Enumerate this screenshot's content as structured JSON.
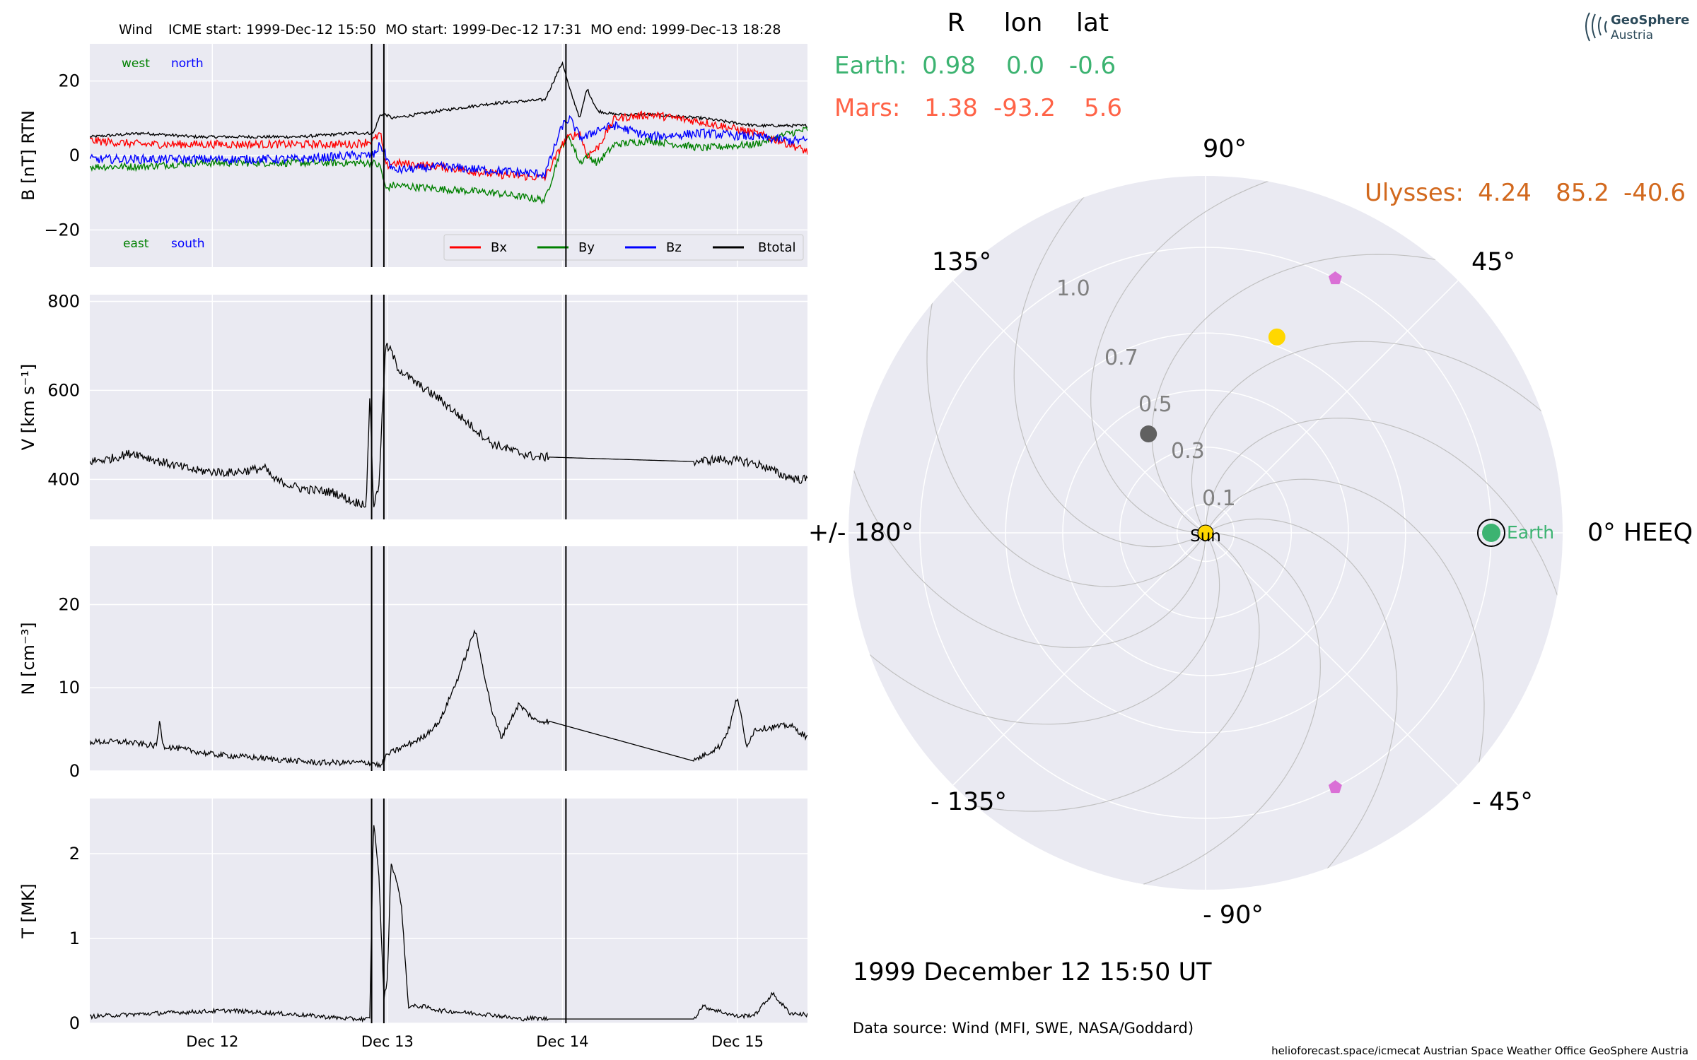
{
  "header": {
    "spacecraft": "Wind",
    "icme_start": "ICME start: 1999-Dec-12 15:50",
    "mo_start": "MO start: 1999-Dec-12 17:31",
    "mo_end": "MO end: 1999-Dec-13 18:28"
  },
  "colors": {
    "bx": "#ff0000",
    "by": "#008000",
    "bz": "#0000ff",
    "btotal": "#000000",
    "panel_bg": "#eaeaf2",
    "grid": "#ffffff",
    "earth": "#3cb371",
    "mars": "#ff6347",
    "ulysses": "#d2691e",
    "sun": "#ffd700",
    "inner_planet": "#ffd700",
    "mercury": "#606060",
    "probe": "#da70d6",
    "spiral": "#c0c0c0",
    "tick_label_polar": "#808080"
  },
  "chart_data": [
    {
      "type": "line",
      "name": "magnetic-field",
      "ylabel": "B [nT] RTN",
      "ylim": [
        -30,
        30
      ],
      "yticks": [
        -20,
        0,
        20
      ],
      "ytick_labels": [
        "−20",
        "0",
        "20"
      ],
      "annotations_top": [
        "west",
        "north"
      ],
      "annotations_bottom": [
        "east",
        "south"
      ],
      "legend": [
        "Bx",
        "By",
        "Bz",
        "Btotal"
      ],
      "legend_placement": "lower-right",
      "x_knots_days": [
        0,
        0.3,
        0.6,
        0.9,
        1.2,
        1.5,
        1.62,
        1.66,
        1.69,
        1.73,
        2.0,
        2.3,
        2.6,
        2.7,
        2.74,
        2.8,
        2.84,
        2.9,
        3.0,
        3.2,
        3.5,
        3.8,
        4.0,
        4.1
      ],
      "series": [
        {
          "name": "Bx",
          "values": [
            4,
            3,
            3,
            3,
            3,
            3,
            4,
            6,
            -3,
            -2,
            -3,
            -5,
            -6,
            3,
            5,
            6,
            0,
            2,
            10,
            11,
            9,
            6,
            3,
            1
          ]
        },
        {
          "name": "By",
          "values": [
            -3,
            -3,
            -2,
            -2,
            -2,
            -2,
            -2,
            -3,
            -9,
            -8,
            -9,
            -10,
            -12,
            3,
            5,
            -2,
            0,
            -2,
            3,
            4,
            2,
            3,
            6,
            7
          ]
        },
        {
          "name": "Bz",
          "values": [
            -1,
            -1,
            -1,
            -1,
            -1,
            0,
            0,
            3,
            0,
            -4,
            -3,
            -4,
            -5,
            8,
            10,
            5,
            5,
            7,
            8,
            5,
            6,
            5,
            4,
            4
          ]
        },
        {
          "name": "Btotal",
          "values": [
            5,
            6,
            5,
            5,
            5,
            6,
            6,
            11,
            11,
            10,
            12,
            14,
            15,
            25,
            18,
            10,
            18,
            12,
            11,
            11,
            10,
            8,
            8,
            8
          ]
        }
      ]
    },
    {
      "type": "line",
      "name": "speed",
      "ylabel": "V [km s⁻¹]",
      "ylim": [
        310,
        815
      ],
      "yticks": [
        400,
        600,
        800
      ],
      "x_knots_days": [
        0,
        0.1,
        0.25,
        0.4,
        0.6,
        0.8,
        1.0,
        1.05,
        1.2,
        1.4,
        1.5,
        1.58,
        1.6,
        1.62,
        1.65,
        1.69,
        1.72,
        1.76,
        1.85,
        2.0,
        2.15,
        2.3,
        2.45,
        2.55,
        2.62,
        3.45,
        3.6,
        3.75,
        3.85,
        3.95,
        4.05,
        4.1
      ],
      "values": [
        440,
        445,
        460,
        440,
        420,
        415,
        425,
        400,
        380,
        370,
        350,
        345,
        600,
        340,
        380,
        700,
        690,
        650,
        620,
        580,
        530,
        480,
        460,
        450,
        450,
        440,
        445,
        440,
        430,
        410,
        400,
        400
      ]
    },
    {
      "type": "line",
      "name": "density",
      "ylabel": "N [cm⁻³]",
      "ylim": [
        0,
        27
      ],
      "yticks": [
        0,
        10,
        20
      ],
      "x_knots_days": [
        0,
        0.2,
        0.38,
        0.4,
        0.42,
        0.7,
        1.0,
        1.3,
        1.5,
        1.62,
        1.66,
        1.7,
        1.9,
        2.0,
        2.1,
        2.2,
        2.3,
        2.35,
        2.45,
        2.55,
        2.62,
        3.45,
        3.6,
        3.65,
        3.7,
        3.75,
        3.8,
        4.0,
        4.1
      ],
      "values": [
        3.5,
        3.5,
        3,
        6,
        3,
        2,
        1.5,
        1,
        1,
        1,
        0.5,
        2,
        4,
        6,
        11,
        17,
        7,
        4,
        8,
        6,
        6,
        1.2,
        3,
        5,
        9,
        3,
        5,
        5.5,
        4
      ]
    },
    {
      "type": "line",
      "name": "temperature",
      "ylabel": "T [MK]",
      "ylim": [
        0,
        2.65
      ],
      "yticks": [
        0,
        1,
        2
      ],
      "x_knots_days": [
        0,
        0.4,
        0.8,
        1.2,
        1.5,
        1.6,
        1.62,
        1.65,
        1.68,
        1.7,
        1.72,
        1.75,
        1.78,
        1.82,
        1.9,
        2.0,
        2.3,
        2.45,
        2.55,
        2.62,
        3.45,
        3.5,
        3.7,
        3.8,
        3.9,
        4.0,
        4.1
      ],
      "values": [
        0.08,
        0.12,
        0.15,
        0.1,
        0.05,
        0.05,
        2.4,
        1.8,
        0.3,
        0.5,
        1.9,
        1.7,
        1.4,
        0.2,
        0.2,
        0.15,
        0.1,
        0.05,
        0.06,
        0.05,
        0.05,
        0.2,
        0.08,
        0.1,
        0.35,
        0.12,
        0.1
      ]
    },
    {
      "type": "polar",
      "name": "heliosphere-position",
      "angle_labels": [
        "90°",
        "45°",
        "0° HEEQ",
        "- 45°",
        "- 90°",
        "- 135°",
        "+/- 180°",
        "135°"
      ],
      "angles_deg": [
        90,
        45,
        0,
        -45,
        -90,
        -135,
        180,
        135
      ],
      "radial_labels": [
        "0.1",
        "0.3",
        "0.5",
        "0.7",
        "1.0"
      ],
      "radial_values": [
        0.1,
        0.3,
        0.5,
        0.7,
        1.0
      ],
      "rmax": 1.25,
      "table_header": [
        "R",
        "lon",
        "lat"
      ],
      "bodies": [
        {
          "name": "Earth",
          "r": 0.98,
          "lon": 0.0,
          "lat": -0.6
        },
        {
          "name": "Mars",
          "r": 1.38,
          "lon": -93.2,
          "lat": 5.6
        },
        {
          "name": "Ulysses",
          "r": 4.24,
          "lon": 85.2,
          "lat": -40.6
        }
      ],
      "markers": [
        {
          "name": "Sun",
          "r": 0.0,
          "lon": 0
        },
        {
          "name": "Earth",
          "r": 1.0,
          "lon": 0
        },
        {
          "name": "yellow-planet",
          "r": 0.73,
          "lon": 70
        },
        {
          "name": "grey-planet",
          "r": 0.4,
          "lon": 120
        },
        {
          "name": "probe-north",
          "r": 1.0,
          "lon": 63
        },
        {
          "name": "probe-south",
          "r": 1.0,
          "lon": -63
        }
      ]
    }
  ],
  "time_axis": {
    "ticks": [
      "Dec 12",
      "Dec 13",
      "Dec 14",
      "Dec 15"
    ],
    "tick_days": [
      0.7,
      1.7,
      2.7,
      3.7
    ],
    "icme_start_day": 1.61,
    "mo_start_day": 1.68,
    "mo_end_day": 2.72
  },
  "polar_labels": {
    "table_r": "R",
    "table_lon": "lon",
    "table_lat": "lat",
    "earth_name": "Earth:",
    "earth_r": "0.98",
    "earth_lon": "0.0",
    "earth_lat": "-0.6",
    "mars_name": "Mars:",
    "mars_r": "1.38",
    "mars_lon": "-93.2",
    "mars_lat": "5.6",
    "ulysses_name": "Ulysses:",
    "ulysses_r": "4.24",
    "ulysses_lon": "85.2",
    "ulysses_lat": "-40.6",
    "sun_label": "Sun",
    "earth_marker_label": "Earth"
  },
  "footer": {
    "date": "1999 December 12  15:50 UT",
    "data_source": "Data source: Wind (MFI, SWE, NASA/Goddard)",
    "credit": "helioforecast.space/icmecat   Austrian Space Weather Office   GeoSphere Austria"
  },
  "logo": {
    "line1": "GeoSphere",
    "line2": "Austria"
  }
}
